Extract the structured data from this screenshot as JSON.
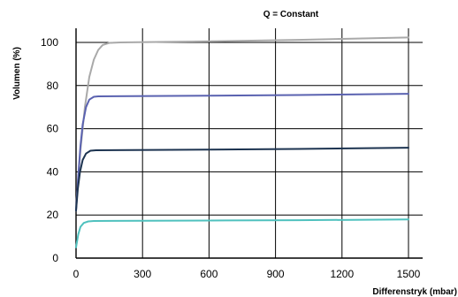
{
  "chart_data": {
    "type": "line",
    "title": "Q = Constant",
    "xlabel": "Differenstryk (mbar)",
    "ylabel": "Volumen (%)",
    "xlim": [
      0,
      1500
    ],
    "ylim": [
      0,
      100
    ],
    "x_ticks": [
      "0",
      "300",
      "600",
      "900",
      "1200",
      "1500"
    ],
    "y_ticks": [
      "0",
      "20",
      "40",
      "60",
      "80",
      "100"
    ],
    "grid": true,
    "series": [
      {
        "color": "#a9a9a9",
        "points": [
          [
            0,
            24
          ],
          [
            20,
            50
          ],
          [
            40,
            70
          ],
          [
            60,
            84
          ],
          [
            80,
            92
          ],
          [
            100,
            96.5
          ],
          [
            120,
            98.8
          ],
          [
            150,
            99.8
          ],
          [
            200,
            100
          ],
          [
            600,
            100.5
          ],
          [
            1000,
            101.2
          ],
          [
            1500,
            102.3
          ]
        ]
      },
      {
        "color": "#5a62b0",
        "points": [
          [
            0,
            22
          ],
          [
            10,
            38
          ],
          [
            20,
            52
          ],
          [
            30,
            62
          ],
          [
            45,
            70
          ],
          [
            60,
            73.5
          ],
          [
            80,
            74.8
          ],
          [
            100,
            75
          ],
          [
            600,
            75.3
          ],
          [
            1000,
            75.6
          ],
          [
            1500,
            76.2
          ]
        ]
      },
      {
        "color": "#1c3350",
        "points": [
          [
            0,
            22
          ],
          [
            8,
            32
          ],
          [
            18,
            40
          ],
          [
            30,
            45.5
          ],
          [
            45,
            48.5
          ],
          [
            65,
            49.8
          ],
          [
            90,
            50
          ],
          [
            600,
            50.3
          ],
          [
            1000,
            50.6
          ],
          [
            1500,
            51.2
          ]
        ]
      },
      {
        "color": "#4fc1be",
        "points": [
          [
            0,
            5
          ],
          [
            10,
            11
          ],
          [
            20,
            14.5
          ],
          [
            35,
            16.3
          ],
          [
            55,
            17
          ],
          [
            80,
            17.2
          ],
          [
            600,
            17.4
          ],
          [
            1000,
            17.6
          ],
          [
            1500,
            17.9
          ]
        ]
      }
    ]
  }
}
